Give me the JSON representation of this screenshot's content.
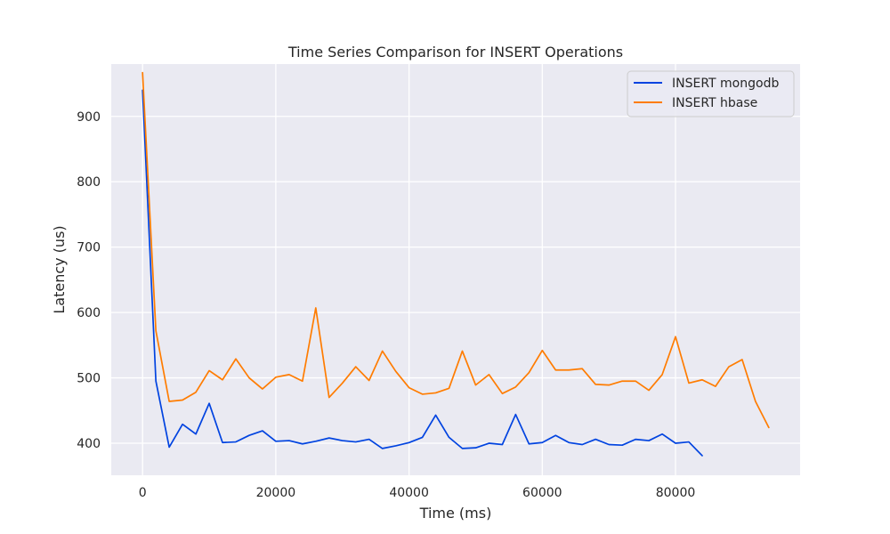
{
  "chart_data": {
    "type": "line",
    "title": "Time Series Comparison for INSERT Operations",
    "xlabel": "Time (ms)",
    "ylabel": "Latency (us)",
    "xlim": [
      -4700,
      98700
    ],
    "ylim": [
      351,
      980
    ],
    "xticks": [
      0,
      20000,
      40000,
      60000,
      80000
    ],
    "yticks": [
      400,
      500,
      600,
      700,
      800,
      900
    ],
    "grid": true,
    "legend_position": "top-right",
    "background": "#EAEAF2",
    "series": [
      {
        "name": "INSERT mongodb",
        "color": "#0043E0",
        "x": [
          0,
          2000,
          4000,
          6000,
          8000,
          10000,
          12000,
          14000,
          16000,
          18000,
          20000,
          22000,
          24000,
          26000,
          28000,
          30000,
          32000,
          34000,
          36000,
          38000,
          40000,
          42000,
          44000,
          46000,
          48000,
          50000,
          52000,
          54000,
          56000,
          58000,
          60000,
          62000,
          64000,
          66000,
          68000,
          70000,
          72000,
          74000,
          76000,
          78000,
          80000,
          82000,
          84000
        ],
        "values": [
          940,
          495,
          394,
          429,
          414,
          461,
          401,
          402,
          412,
          419,
          403,
          404,
          399,
          403,
          408,
          404,
          402,
          406,
          392,
          396,
          401,
          409,
          443,
          409,
          392,
          393,
          400,
          398,
          444,
          399,
          401,
          412,
          401,
          398,
          406,
          398,
          397,
          406,
          404,
          414,
          400,
          402,
          381
        ]
      },
      {
        "name": "INSERT hbase",
        "color": "#FF7C00",
        "x": [
          0,
          2000,
          4000,
          6000,
          8000,
          10000,
          12000,
          14000,
          16000,
          18000,
          20000,
          22000,
          24000,
          26000,
          28000,
          30000,
          32000,
          34000,
          36000,
          38000,
          40000,
          42000,
          44000,
          46000,
          48000,
          50000,
          52000,
          54000,
          56000,
          58000,
          60000,
          62000,
          64000,
          66000,
          68000,
          70000,
          72000,
          74000,
          76000,
          78000,
          80000,
          82000,
          84000,
          86000,
          88000,
          90000,
          92000,
          94000
        ],
        "values": [
          967,
          572,
          464,
          466,
          478,
          511,
          497,
          529,
          500,
          483,
          501,
          505,
          495,
          607,
          470,
          492,
          517,
          496,
          541,
          510,
          485,
          475,
          477,
          484,
          541,
          489,
          505,
          476,
          486,
          508,
          542,
          512,
          512,
          514,
          490,
          489,
          495,
          495,
          481,
          505,
          563,
          492,
          497,
          487,
          517,
          528,
          464,
          424
        ]
      }
    ]
  }
}
